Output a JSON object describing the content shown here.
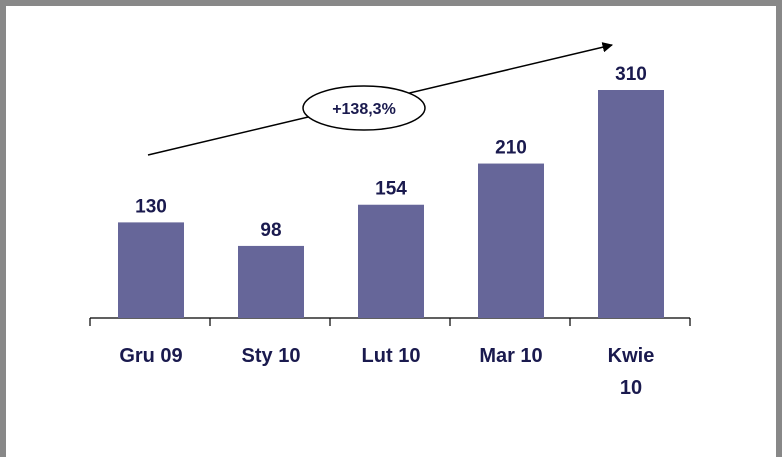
{
  "chart_data": {
    "type": "bar",
    "categories": [
      "Gru 09",
      "Sty 10",
      "Lut 10",
      "Mar 10",
      "Kwie 10"
    ],
    "values": [
      130,
      98,
      154,
      210,
      310
    ],
    "color": "#666699",
    "annotation": "+138,3%"
  }
}
